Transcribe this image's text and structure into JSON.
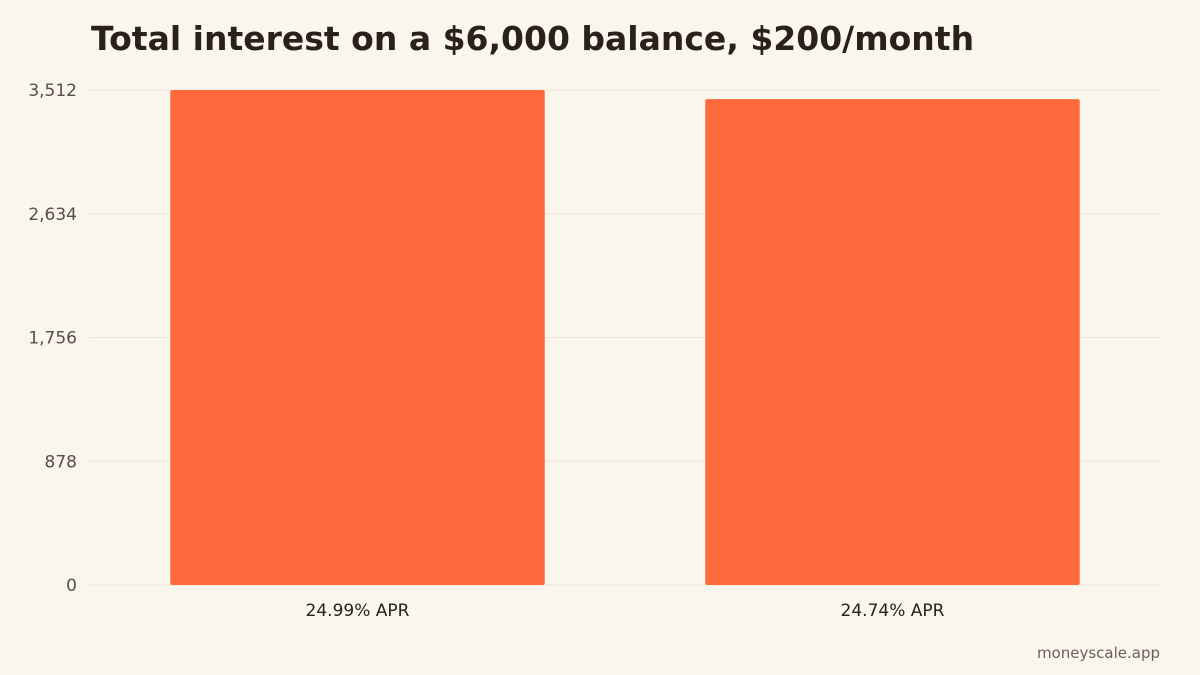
{
  "chart_data": {
    "type": "bar",
    "title": "Total interest on a $6,000 balance, $200/month",
    "xlabel": "",
    "ylabel": "",
    "categories": [
      "24.99% APR",
      "24.74% APR"
    ],
    "values": [
      3512,
      3447
    ],
    "ylim": [
      0,
      3512
    ],
    "yticks": [
      0,
      878,
      1756,
      2634,
      3512
    ],
    "ytick_labels": [
      "0",
      "878",
      "1,756",
      "2,634",
      "3,512"
    ],
    "grid": true,
    "legend": "none",
    "bar_color": "#FF6A3D"
  },
  "footer": {
    "source": "moneyscale.app"
  }
}
